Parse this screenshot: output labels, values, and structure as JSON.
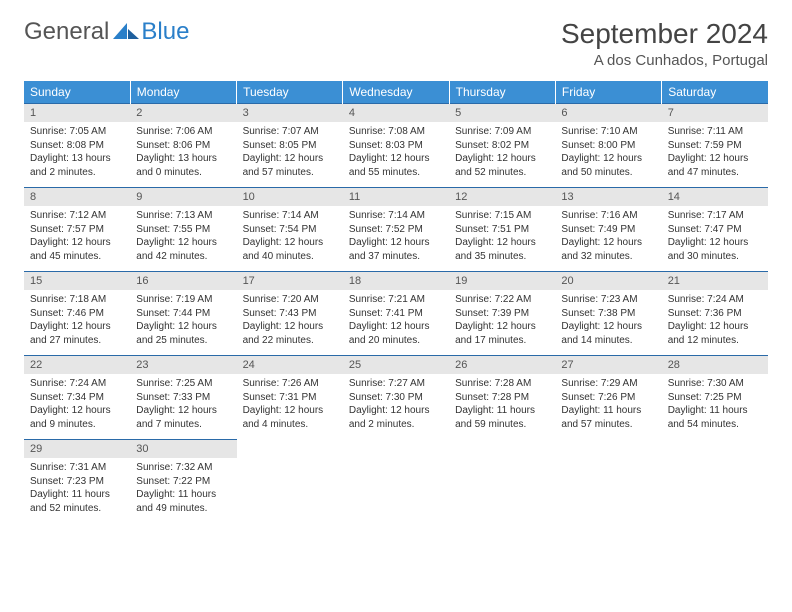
{
  "brand": {
    "word1": "General",
    "word2": "Blue"
  },
  "title": "September 2024",
  "location": "A dos Cunhados, Portugal",
  "header_color": "#3b8fd4",
  "divider_color": "#2a6aa8",
  "daynum_bg": "#e6e6e6",
  "text_color": "#333333",
  "day_headers": [
    "Sunday",
    "Monday",
    "Tuesday",
    "Wednesday",
    "Thursday",
    "Friday",
    "Saturday"
  ],
  "weeks": [
    [
      {
        "n": "1",
        "sunrise": "7:05 AM",
        "sunset": "8:08 PM",
        "daylight": "13 hours and 2 minutes."
      },
      {
        "n": "2",
        "sunrise": "7:06 AM",
        "sunset": "8:06 PM",
        "daylight": "13 hours and 0 minutes."
      },
      {
        "n": "3",
        "sunrise": "7:07 AM",
        "sunset": "8:05 PM",
        "daylight": "12 hours and 57 minutes."
      },
      {
        "n": "4",
        "sunrise": "7:08 AM",
        "sunset": "8:03 PM",
        "daylight": "12 hours and 55 minutes."
      },
      {
        "n": "5",
        "sunrise": "7:09 AM",
        "sunset": "8:02 PM",
        "daylight": "12 hours and 52 minutes."
      },
      {
        "n": "6",
        "sunrise": "7:10 AM",
        "sunset": "8:00 PM",
        "daylight": "12 hours and 50 minutes."
      },
      {
        "n": "7",
        "sunrise": "7:11 AM",
        "sunset": "7:59 PM",
        "daylight": "12 hours and 47 minutes."
      }
    ],
    [
      {
        "n": "8",
        "sunrise": "7:12 AM",
        "sunset": "7:57 PM",
        "daylight": "12 hours and 45 minutes."
      },
      {
        "n": "9",
        "sunrise": "7:13 AM",
        "sunset": "7:55 PM",
        "daylight": "12 hours and 42 minutes."
      },
      {
        "n": "10",
        "sunrise": "7:14 AM",
        "sunset": "7:54 PM",
        "daylight": "12 hours and 40 minutes."
      },
      {
        "n": "11",
        "sunrise": "7:14 AM",
        "sunset": "7:52 PM",
        "daylight": "12 hours and 37 minutes."
      },
      {
        "n": "12",
        "sunrise": "7:15 AM",
        "sunset": "7:51 PM",
        "daylight": "12 hours and 35 minutes."
      },
      {
        "n": "13",
        "sunrise": "7:16 AM",
        "sunset": "7:49 PM",
        "daylight": "12 hours and 32 minutes."
      },
      {
        "n": "14",
        "sunrise": "7:17 AM",
        "sunset": "7:47 PM",
        "daylight": "12 hours and 30 minutes."
      }
    ],
    [
      {
        "n": "15",
        "sunrise": "7:18 AM",
        "sunset": "7:46 PM",
        "daylight": "12 hours and 27 minutes."
      },
      {
        "n": "16",
        "sunrise": "7:19 AM",
        "sunset": "7:44 PM",
        "daylight": "12 hours and 25 minutes."
      },
      {
        "n": "17",
        "sunrise": "7:20 AM",
        "sunset": "7:43 PM",
        "daylight": "12 hours and 22 minutes."
      },
      {
        "n": "18",
        "sunrise": "7:21 AM",
        "sunset": "7:41 PM",
        "daylight": "12 hours and 20 minutes."
      },
      {
        "n": "19",
        "sunrise": "7:22 AM",
        "sunset": "7:39 PM",
        "daylight": "12 hours and 17 minutes."
      },
      {
        "n": "20",
        "sunrise": "7:23 AM",
        "sunset": "7:38 PM",
        "daylight": "12 hours and 14 minutes."
      },
      {
        "n": "21",
        "sunrise": "7:24 AM",
        "sunset": "7:36 PM",
        "daylight": "12 hours and 12 minutes."
      }
    ],
    [
      {
        "n": "22",
        "sunrise": "7:24 AM",
        "sunset": "7:34 PM",
        "daylight": "12 hours and 9 minutes."
      },
      {
        "n": "23",
        "sunrise": "7:25 AM",
        "sunset": "7:33 PM",
        "daylight": "12 hours and 7 minutes."
      },
      {
        "n": "24",
        "sunrise": "7:26 AM",
        "sunset": "7:31 PM",
        "daylight": "12 hours and 4 minutes."
      },
      {
        "n": "25",
        "sunrise": "7:27 AM",
        "sunset": "7:30 PM",
        "daylight": "12 hours and 2 minutes."
      },
      {
        "n": "26",
        "sunrise": "7:28 AM",
        "sunset": "7:28 PM",
        "daylight": "11 hours and 59 minutes."
      },
      {
        "n": "27",
        "sunrise": "7:29 AM",
        "sunset": "7:26 PM",
        "daylight": "11 hours and 57 minutes."
      },
      {
        "n": "28",
        "sunrise": "7:30 AM",
        "sunset": "7:25 PM",
        "daylight": "11 hours and 54 minutes."
      }
    ],
    [
      {
        "n": "29",
        "sunrise": "7:31 AM",
        "sunset": "7:23 PM",
        "daylight": "11 hours and 52 minutes."
      },
      {
        "n": "30",
        "sunrise": "7:32 AM",
        "sunset": "7:22 PM",
        "daylight": "11 hours and 49 minutes."
      },
      null,
      null,
      null,
      null,
      null
    ]
  ],
  "labels": {
    "sunrise": "Sunrise:",
    "sunset": "Sunset:",
    "daylight": "Daylight:"
  }
}
